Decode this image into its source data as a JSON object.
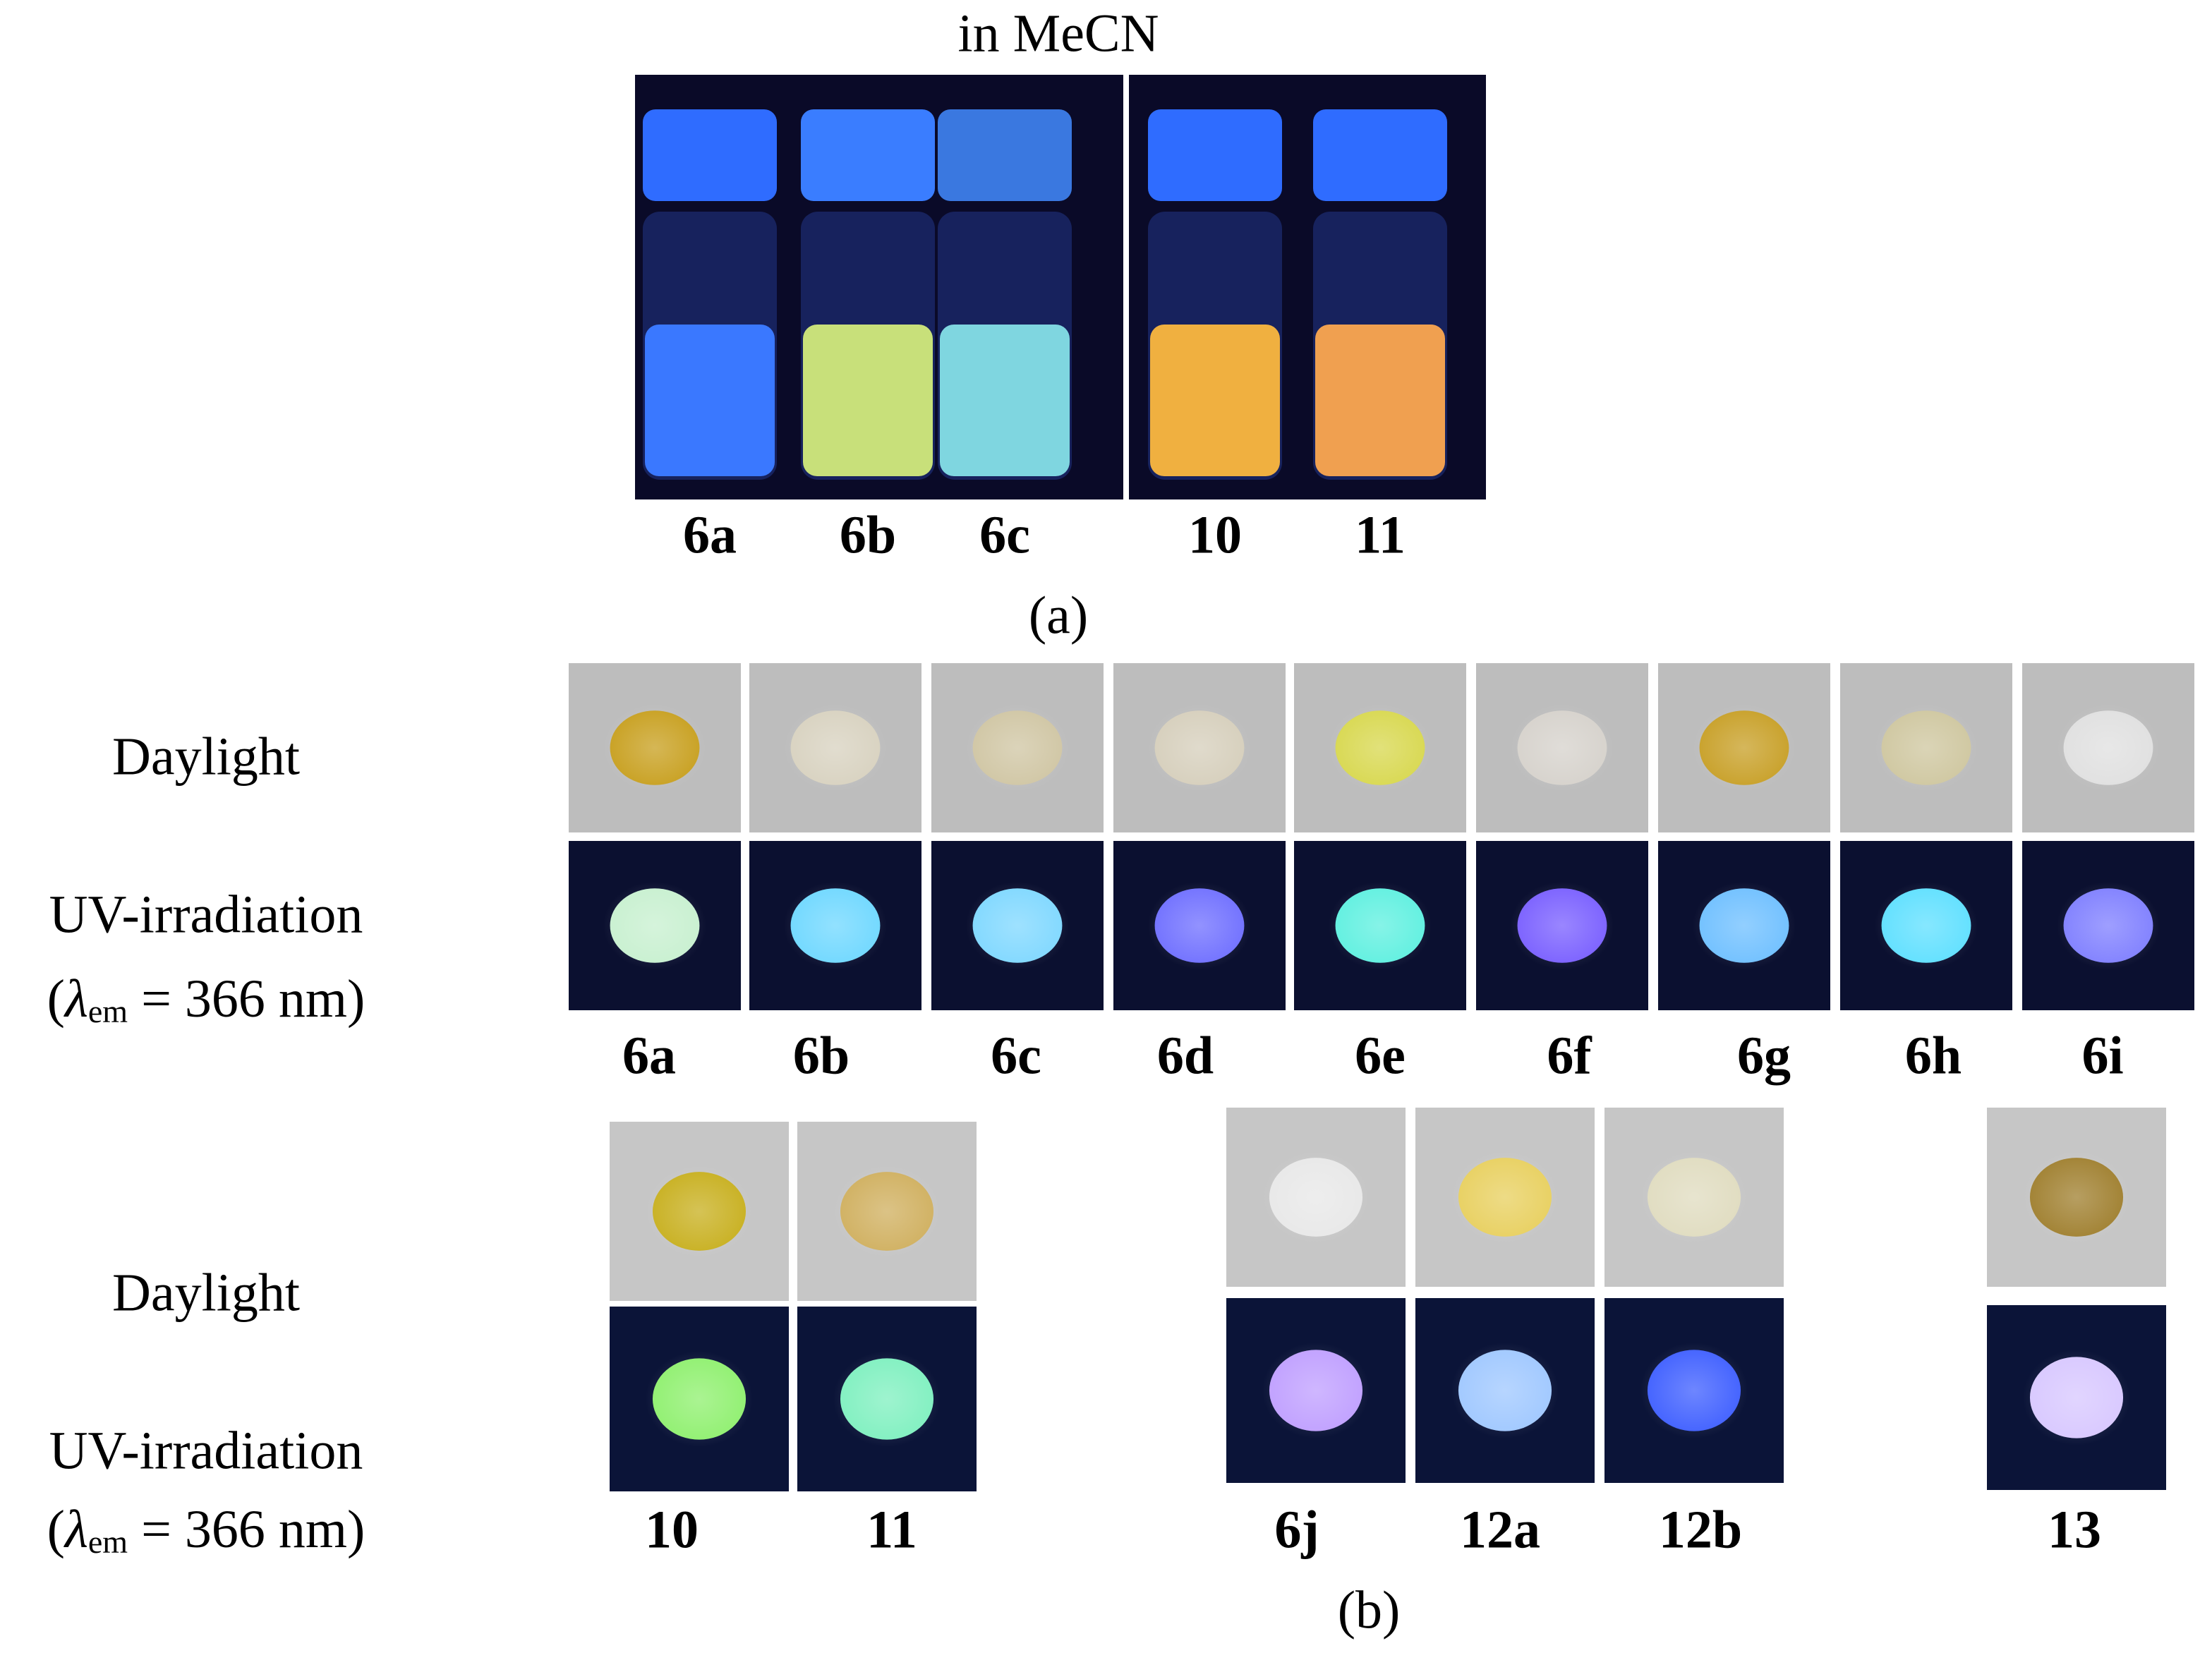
{
  "panel_a": {
    "title": "in MeCN",
    "labels": [
      "6a",
      "6b",
      "6c",
      "10",
      "11"
    ],
    "caption": "(a)"
  },
  "panel_b": {
    "row_labels": {
      "daylight": "Daylight",
      "uv": "UV-irradiation",
      "condition": {
        "open": "(",
        "symbol": "λ",
        "subscript": "em",
        "rest": " = 366 nm)"
      }
    },
    "row1_labels": [
      "6a",
      "6b",
      "6c",
      "6d",
      "6e",
      "6f",
      "6g",
      "6h",
      "6i"
    ],
    "row2_labels": [
      "10",
      "11",
      "6j",
      "12a",
      "12b",
      "13"
    ],
    "caption": "(b)"
  }
}
